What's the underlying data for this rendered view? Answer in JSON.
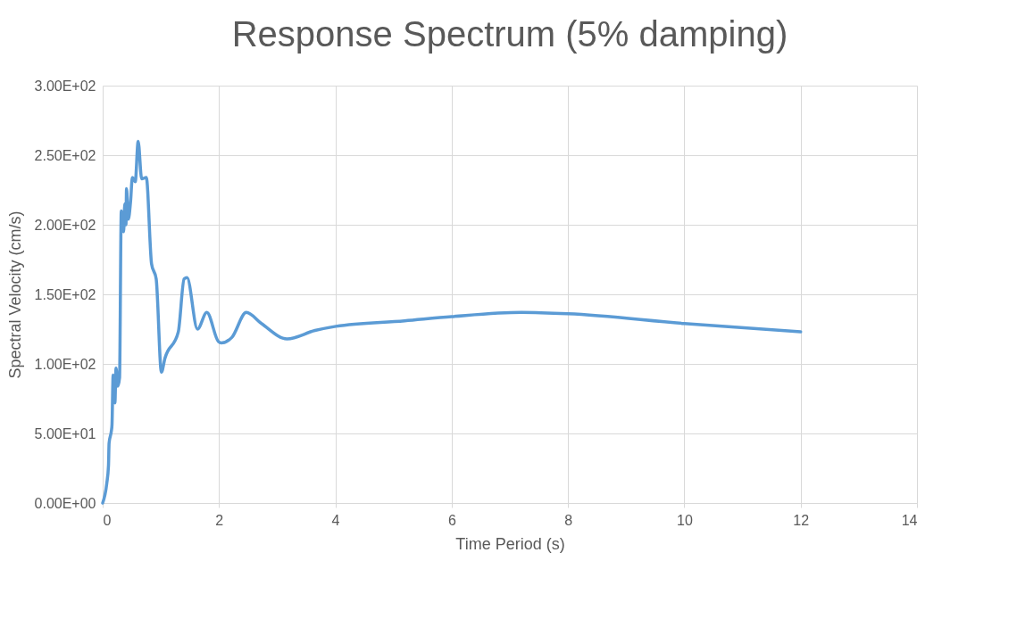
{
  "chart_data": {
    "type": "line",
    "title": "Response Spectrum (5% damping)",
    "xlabel": "Time Period (s)",
    "ylabel": "Spectral Velocity (cm/s)",
    "x": [
      0,
      0.07,
      0.1,
      0.11,
      0.15,
      0.16,
      0.18,
      0.21,
      0.23,
      0.26,
      0.29,
      0.32,
      0.36,
      0.38,
      0.4,
      0.41,
      0.44,
      0.48,
      0.51,
      0.56,
      0.61,
      0.67,
      0.75,
      0.84,
      0.92,
      1.01,
      1.07,
      1.3,
      1.4,
      1.45,
      1.63,
      1.79,
      1.99,
      2.04,
      2.22,
      2.47,
      2.73,
      3.17,
      3.65,
      4.01,
      5.19,
      6,
      7.2,
      8,
      10,
      12
    ],
    "series": [
      {
        "color": "#5b9bd5",
        "values": [
          0,
          14,
          27,
          43,
          52,
          56,
          92,
          72,
          97,
          84,
          90,
          210,
          195,
          215,
          200,
          226,
          204,
          217,
          234,
          231,
          260,
          233,
          234,
          172,
          161,
          94,
          104,
          123,
          161,
          162,
          125,
          137,
          116,
          115,
          119,
          137,
          129,
          118,
          124,
          127,
          131,
          134,
          137,
          136,
          129,
          123
        ]
      }
    ],
    "xlim": [
      0,
      14
    ],
    "xticks": [
      0,
      2,
      4,
      6,
      8,
      10,
      12,
      14
    ],
    "ylim": [
      0,
      300
    ],
    "yticks": [
      {
        "value": 0,
        "label": "0.00E+00"
      },
      {
        "value": 50,
        "label": "5.00E+01"
      },
      {
        "value": 100,
        "label": "1.00E+02"
      },
      {
        "value": 150,
        "label": "1.50E+02"
      },
      {
        "value": 200,
        "label": "2.00E+02"
      },
      {
        "value": 250,
        "label": "2.50E+02"
      },
      {
        "value": 300,
        "label": "3.00E+02"
      }
    ],
    "grid": true,
    "line_style": "solid"
  }
}
